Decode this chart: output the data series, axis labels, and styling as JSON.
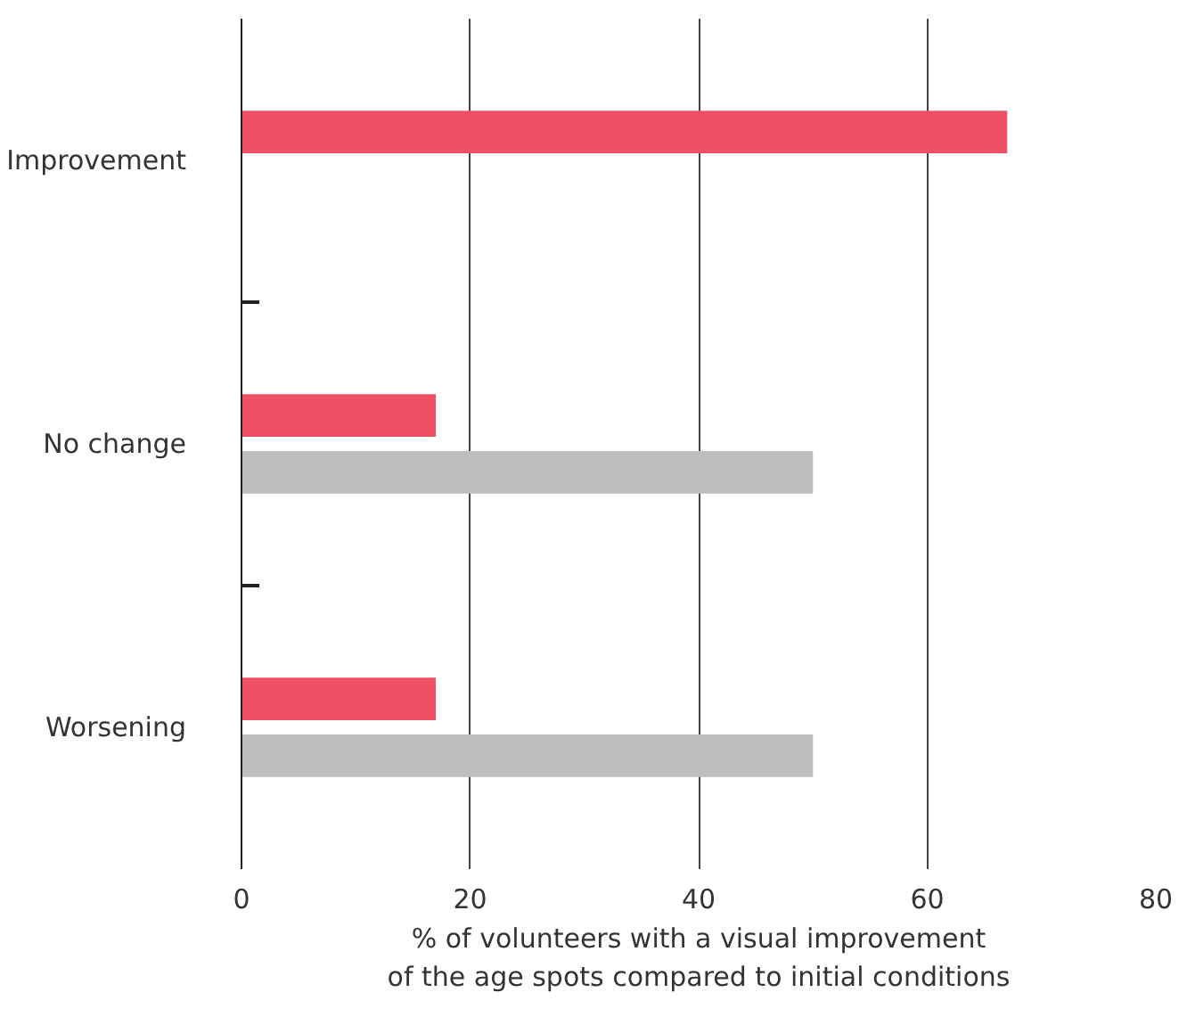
{
  "chart_data": {
    "type": "bar",
    "orientation": "horizontal",
    "categories": [
      "Improvement",
      "No change",
      "Worsening"
    ],
    "series": [
      {
        "color": "#f05064",
        "values": [
          67,
          17,
          17
        ]
      },
      {
        "color": "#bebebe",
        "values": [
          null,
          50,
          50
        ]
      }
    ],
    "xlim": [
      0,
      80
    ],
    "xticks": [
      0,
      20,
      40,
      60,
      80
    ],
    "grid": "x",
    "xlabel": "% of volunteers with a visual improvement\nof the age spots compared to initial conditions"
  }
}
